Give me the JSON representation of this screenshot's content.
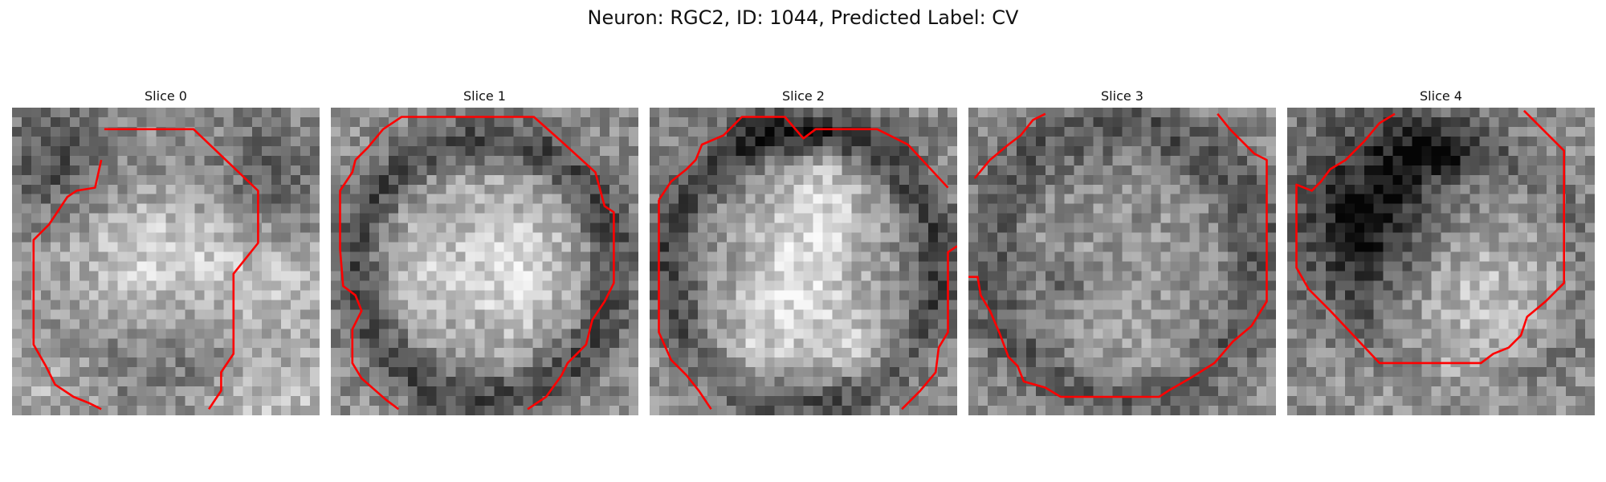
{
  "figure": {
    "title": "Neuron: RGC2, ID: 1044, Predicted Label: CV"
  },
  "colors": {
    "contour": "#ff0000"
  },
  "slices": [
    {
      "title": "Slice 0",
      "seed": 11,
      "blobs": [
        [
          0.5,
          0.48,
          0.33,
          0.2,
          0.28
        ],
        [
          0.14,
          0.18,
          0.18,
          0.18,
          -0.25
        ],
        [
          0.84,
          0.26,
          0.18,
          0.2,
          -0.2
        ],
        [
          0.5,
          0.85,
          0.35,
          0.12,
          -0.1
        ],
        [
          0.9,
          0.6,
          0.2,
          0.25,
          0.15
        ],
        [
          0.1,
          0.9,
          0.2,
          0.15,
          0.15
        ],
        [
          0.85,
          0.95,
          0.25,
          0.15,
          0.2
        ]
      ],
      "ring": null,
      "contour": [
        [
          [
            0.3,
            0.07
          ],
          [
            0.59,
            0.07
          ],
          [
            0.8,
            0.27
          ],
          [
            0.8,
            0.44
          ],
          [
            0.72,
            0.54
          ],
          [
            0.72,
            0.8
          ],
          [
            0.68,
            0.86
          ],
          [
            0.68,
            0.92
          ],
          [
            0.64,
            0.98
          ]
        ],
        [
          [
            0.29,
            0.17
          ],
          [
            0.27,
            0.26
          ],
          [
            0.21,
            0.27
          ],
          [
            0.18,
            0.29
          ],
          [
            0.12,
            0.38
          ],
          [
            0.07,
            0.43
          ],
          [
            0.07,
            0.77
          ],
          [
            0.11,
            0.84
          ],
          [
            0.14,
            0.9
          ],
          [
            0.2,
            0.94
          ],
          [
            0.25,
            0.96
          ],
          [
            0.29,
            0.98
          ]
        ]
      ]
    },
    {
      "title": "Slice 1",
      "seed": 23,
      "blobs": [
        [
          0.5,
          0.5,
          0.32,
          0.32,
          0.22
        ],
        [
          0.62,
          0.55,
          0.12,
          0.18,
          0.15
        ],
        [
          0.3,
          0.55,
          0.1,
          0.12,
          0.1
        ]
      ],
      "ring": [
        0.5,
        0.52,
        0.42,
        0.08,
        -0.3
      ],
      "contour": [
        [
          [
            0.08,
            0.17
          ],
          [
            0.12,
            0.13
          ],
          [
            0.17,
            0.07
          ],
          [
            0.23,
            0.03
          ],
          [
            0.66,
            0.03
          ],
          [
            0.75,
            0.11
          ],
          [
            0.86,
            0.21
          ],
          [
            0.89,
            0.32
          ],
          [
            0.92,
            0.34
          ],
          [
            0.92,
            0.57
          ],
          [
            0.89,
            0.63
          ],
          [
            0.85,
            0.69
          ],
          [
            0.83,
            0.77
          ],
          [
            0.77,
            0.83
          ],
          [
            0.75,
            0.87
          ],
          [
            0.7,
            0.94
          ],
          [
            0.64,
            0.98
          ]
        ],
        [
          [
            0.22,
            0.98
          ],
          [
            0.18,
            0.95
          ],
          [
            0.1,
            0.88
          ],
          [
            0.07,
            0.83
          ],
          [
            0.07,
            0.72
          ],
          [
            0.1,
            0.66
          ],
          [
            0.08,
            0.61
          ],
          [
            0.04,
            0.58
          ],
          [
            0.03,
            0.46
          ],
          [
            0.03,
            0.27
          ],
          [
            0.07,
            0.21
          ],
          [
            0.08,
            0.17
          ]
        ]
      ]
    },
    {
      "title": "Slice 2",
      "seed": 37,
      "blobs": [
        [
          0.57,
          0.4,
          0.14,
          0.32,
          0.3
        ],
        [
          0.4,
          0.62,
          0.14,
          0.28,
          0.25
        ],
        [
          0.7,
          0.78,
          0.18,
          0.12,
          0.2
        ],
        [
          0.25,
          0.82,
          0.15,
          0.1,
          0.15
        ],
        [
          0.5,
          0.08,
          0.3,
          0.07,
          -0.25
        ]
      ],
      "ring": [
        0.5,
        0.52,
        0.44,
        0.08,
        -0.28
      ],
      "contour": [
        [
          [
            0.03,
            0.3
          ],
          [
            0.07,
            0.24
          ],
          [
            0.12,
            0.2
          ],
          [
            0.15,
            0.17
          ],
          [
            0.17,
            0.12
          ],
          [
            0.24,
            0.09
          ],
          [
            0.3,
            0.03
          ],
          [
            0.44,
            0.03
          ],
          [
            0.5,
            0.1
          ],
          [
            0.54,
            0.07
          ],
          [
            0.74,
            0.07
          ],
          [
            0.84,
            0.12
          ],
          [
            0.97,
            0.26
          ]
        ],
        [
          [
            0.03,
            0.3
          ],
          [
            0.03,
            0.73
          ],
          [
            0.07,
            0.82
          ],
          [
            0.12,
            0.87
          ],
          [
            0.16,
            0.92
          ],
          [
            0.2,
            0.98
          ]
        ],
        [
          [
            1.0,
            0.45
          ],
          [
            0.97,
            0.47
          ],
          [
            0.97,
            0.73
          ],
          [
            0.94,
            0.78
          ],
          [
            0.93,
            0.86
          ],
          [
            0.88,
            0.92
          ],
          [
            0.82,
            0.98
          ]
        ]
      ]
    },
    {
      "title": "Slice 3",
      "seed": 51,
      "blobs": [
        [
          0.45,
          0.6,
          0.32,
          0.35,
          0.05
        ],
        [
          0.3,
          0.55,
          0.08,
          0.08,
          -0.2
        ],
        [
          0.6,
          0.85,
          0.3,
          0.1,
          0.08
        ]
      ],
      "ring": [
        0.5,
        0.5,
        0.44,
        0.1,
        -0.22
      ],
      "contour": [
        [
          [
            0.25,
            0.02
          ],
          [
            0.21,
            0.04
          ],
          [
            0.17,
            0.09
          ],
          [
            0.13,
            0.12
          ],
          [
            0.07,
            0.17
          ],
          [
            0.02,
            0.23
          ]
        ],
        [
          [
            0.81,
            0.02
          ],
          [
            0.85,
            0.07
          ],
          [
            0.93,
            0.15
          ],
          [
            0.97,
            0.17
          ],
          [
            0.97,
            0.63
          ],
          [
            0.92,
            0.71
          ],
          [
            0.86,
            0.76
          ],
          [
            0.8,
            0.83
          ],
          [
            0.72,
            0.88
          ],
          [
            0.65,
            0.92
          ],
          [
            0.62,
            0.94
          ],
          [
            0.3,
            0.94
          ],
          [
            0.25,
            0.91
          ],
          [
            0.18,
            0.89
          ],
          [
            0.16,
            0.84
          ],
          [
            0.13,
            0.81
          ],
          [
            0.1,
            0.73
          ],
          [
            0.07,
            0.66
          ],
          [
            0.04,
            0.61
          ],
          [
            0.03,
            0.55
          ],
          [
            0.0,
            0.55
          ]
        ]
      ]
    },
    {
      "title": "Slice 4",
      "seed": 67,
      "blobs": [
        [
          0.25,
          0.35,
          0.25,
          0.3,
          -0.42
        ],
        [
          0.48,
          0.12,
          0.2,
          0.1,
          -0.35
        ],
        [
          0.6,
          0.6,
          0.25,
          0.22,
          0.22
        ],
        [
          0.5,
          0.9,
          0.3,
          0.1,
          0.12
        ]
      ],
      "ring": [
        0.6,
        0.55,
        0.38,
        0.07,
        -0.1
      ],
      "contour": [
        [
          [
            0.35,
            0.02
          ],
          [
            0.3,
            0.05
          ],
          [
            0.25,
            0.11
          ],
          [
            0.19,
            0.17
          ],
          [
            0.14,
            0.2
          ],
          [
            0.11,
            0.24
          ],
          [
            0.08,
            0.27
          ],
          [
            0.03,
            0.25
          ],
          [
            0.03,
            0.52
          ],
          [
            0.07,
            0.59
          ],
          [
            0.14,
            0.66
          ],
          [
            0.3,
            0.83
          ],
          [
            0.63,
            0.83
          ],
          [
            0.67,
            0.8
          ],
          [
            0.72,
            0.78
          ],
          [
            0.76,
            0.74
          ],
          [
            0.78,
            0.68
          ],
          [
            0.84,
            0.63
          ],
          [
            0.9,
            0.57
          ],
          [
            0.9,
            0.14
          ],
          [
            0.77,
            0.01
          ]
        ]
      ]
    }
  ]
}
